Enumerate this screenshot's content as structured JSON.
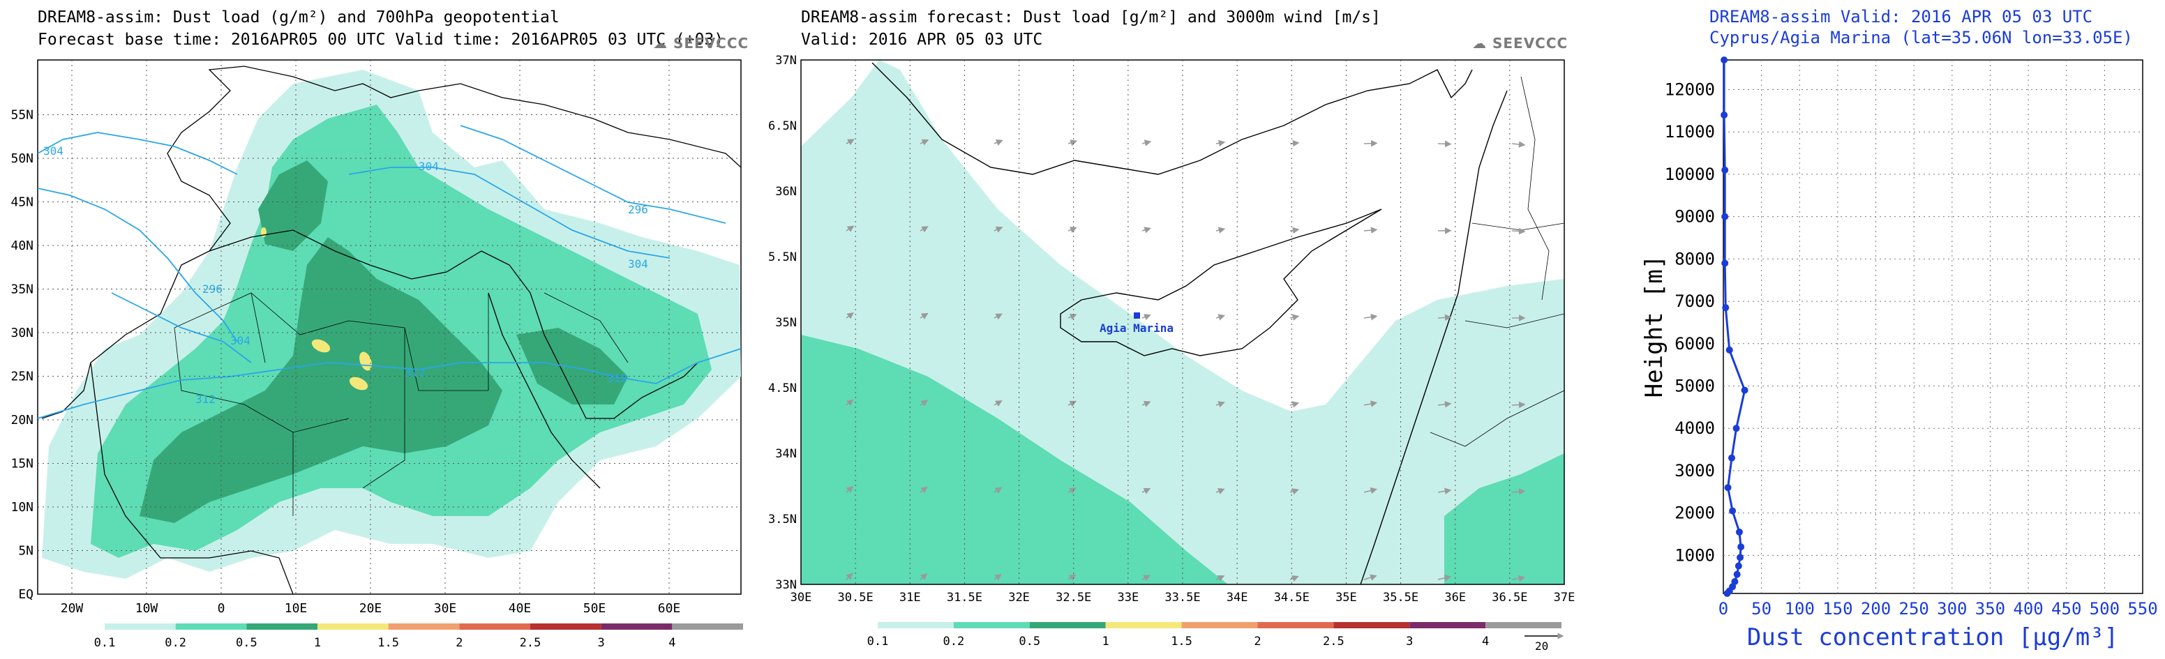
{
  "chart_data": [
    {
      "type": "heatmap",
      "title_line1": "DREAM8-assim: Dust load (g/m²) and 700hPa geopotential",
      "title_line2": "Forecast base time: 2016APR05 00 UTC   Valid time: 2016APR05 03 UTC   (+03)",
      "logo": "SEEVCCC",
      "x_ticks": [
        "20W",
        "10W",
        "0",
        "10E",
        "20E",
        "30E",
        "40E",
        "50E",
        "60E"
      ],
      "y_ticks": [
        "EQ",
        "5N",
        "10N",
        "15N",
        "20N",
        "25N",
        "30N",
        "35N",
        "40N",
        "45N",
        "50N",
        "55N"
      ],
      "contour_labels": [
        "304",
        "304",
        "296",
        "296",
        "304",
        "304",
        "312",
        "312",
        "312"
      ],
      "colorbar_levels": [
        "0.1",
        "0.2",
        "0.5",
        "1",
        "1.5",
        "2",
        "2.5",
        "3",
        "4"
      ],
      "colorbar_colors": [
        "#c8f0ea",
        "#5edcb4",
        "#36a878",
        "#f5e87a",
        "#f0a06e",
        "#e06a50",
        "#b83030",
        "#7a2c6a",
        "#9a9a9a"
      ]
    },
    {
      "type": "heatmap",
      "title_line1": "DREAM8-assim forecast: Dust load [g/m²] and 3000m wind [m/s]",
      "title_line2": "Valid: 2016 APR 05   03 UTC",
      "logo": "SEEVCCC",
      "x_ticks": [
        "30E",
        "30.5E",
        "31E",
        "31.5E",
        "32E",
        "32.5E",
        "33E",
        "33.5E",
        "34E",
        "34.5E",
        "35E",
        "35.5E",
        "36E",
        "36.5E",
        "37E"
      ],
      "y_ticks": [
        "33N",
        "33.5N",
        "34N",
        "34.5N",
        "35N",
        "35.5N",
        "36N",
        "36.5N",
        "37N"
      ],
      "station_label": "Agia Marina",
      "colorbar_levels": [
        "0.1",
        "0.2",
        "0.5",
        "1",
        "1.5",
        "2",
        "2.5",
        "3",
        "4"
      ],
      "colorbar_colors": [
        "#c8f0ea",
        "#5edcb4",
        "#36a878",
        "#f5e87a",
        "#f0a06e",
        "#e06a50",
        "#b83030",
        "#7a2c6a",
        "#9a9a9a"
      ],
      "wind_reference": "20"
    },
    {
      "type": "line",
      "title_line1": "DREAM8-assim   Valid: 2016 APR 05   03 UTC",
      "title_line2": "Cyprus/Agia Marina (lat=35.06N lon=33.05E)",
      "xlabel": "Dust concentration [μg/m³]",
      "ylabel": "Height [m]",
      "xlim": [
        0,
        550
      ],
      "ylim": [
        100,
        12700
      ],
      "x_ticks": [
        0,
        50,
        100,
        150,
        200,
        250,
        300,
        350,
        400,
        450,
        500,
        550
      ],
      "y_ticks": [
        1000,
        2000,
        3000,
        4000,
        5000,
        6000,
        7000,
        8000,
        9000,
        10000,
        11000,
        12000
      ],
      "series": [
        {
          "name": "Dust concentration",
          "points": [
            [
              1,
              12700
            ],
            [
              1,
              11400
            ],
            [
              2,
              10100
            ],
            [
              2,
              9000
            ],
            [
              2,
              7900
            ],
            [
              3,
              6850
            ],
            [
              8,
              5850
            ],
            [
              28,
              4900
            ],
            [
              17,
              4000
            ],
            [
              11,
              3300
            ],
            [
              6,
              2600
            ],
            [
              12,
              2050
            ],
            [
              21,
              1550
            ],
            [
              23,
              1200
            ],
            [
              22,
              950
            ],
            [
              20,
              750
            ],
            [
              18,
              550
            ],
            [
              15,
              380
            ],
            [
              12,
              260
            ],
            [
              8,
              160
            ],
            [
              5,
              100
            ]
          ]
        }
      ]
    }
  ]
}
